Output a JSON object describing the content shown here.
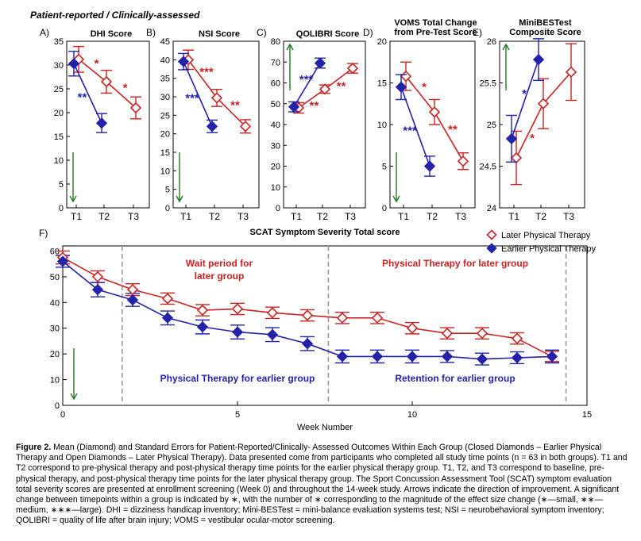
{
  "figure": {
    "header": "Patient-reported / Clinically-assessed",
    "colors": {
      "later": "#cc2222",
      "earlier": "#2222aa",
      "arrow": "#1e7a1e",
      "dashed": "#999999"
    }
  },
  "chart_data": [
    {
      "panel": "A)",
      "type": "line",
      "title": "DHI Score",
      "categories": [
        "T1",
        "T2",
        "T3"
      ],
      "ylim": [
        0,
        35
      ],
      "yticks": [
        0,
        5,
        10,
        15,
        20,
        25,
        30,
        35
      ],
      "series": [
        {
          "key": "later",
          "values": [
            31.2,
            26.5,
            21.0
          ],
          "err": [
            2.7,
            2.4,
            2.3
          ]
        },
        {
          "key": "earlier",
          "values": [
            30.3,
            17.8,
            null
          ],
          "err": [
            2.6,
            2.0,
            null
          ]
        }
      ],
      "significance": [
        {
          "series": "later",
          "between": [
            1,
            2
          ],
          "label": "*"
        },
        {
          "series": "later",
          "between": [
            2,
            3
          ],
          "label": "*"
        },
        {
          "series": "earlier",
          "between": [
            1,
            2
          ],
          "label": "**"
        }
      ],
      "improvement": "down"
    },
    {
      "panel": "B)",
      "type": "line",
      "title": "NSI Score",
      "categories": [
        "T1",
        "T2",
        "T3"
      ],
      "ylim": [
        0,
        45
      ],
      "yticks": [
        0,
        5,
        10,
        15,
        20,
        25,
        30,
        35,
        40,
        45
      ],
      "series": [
        {
          "key": "later",
          "values": [
            40.0,
            29.7,
            22.0
          ],
          "err": [
            2.6,
            2.3,
            1.8
          ]
        },
        {
          "key": "earlier",
          "values": [
            39.5,
            22.0,
            null
          ],
          "err": [
            2.2,
            1.7,
            null
          ]
        }
      ],
      "significance": [
        {
          "series": "later",
          "between": [
            1,
            2
          ],
          "label": "***"
        },
        {
          "series": "later",
          "between": [
            2,
            3
          ],
          "label": "**"
        },
        {
          "series": "earlier",
          "between": [
            1,
            2
          ],
          "label": "***"
        }
      ],
      "improvement": "down"
    },
    {
      "panel": "C)",
      "type": "line",
      "title": "QOLIBRI Score",
      "categories": [
        "T1",
        "T2",
        "T3"
      ],
      "ylim": [
        0,
        80
      ],
      "yticks": [
        0,
        10,
        20,
        30,
        40,
        50,
        60,
        70,
        80
      ],
      "series": [
        {
          "key": "later",
          "values": [
            48.0,
            57.0,
            67.0
          ],
          "err": [
            2.5,
            2.0,
            2.3
          ]
        },
        {
          "key": "earlier",
          "values": [
            48.5,
            69.5,
            null
          ],
          "err": [
            2.4,
            2.4,
            null
          ]
        }
      ],
      "significance": [
        {
          "series": "later",
          "between": [
            1,
            2
          ],
          "label": "**"
        },
        {
          "series": "later",
          "between": [
            2,
            3
          ],
          "label": "**"
        },
        {
          "series": "earlier",
          "between": [
            1,
            2
          ],
          "label": "***"
        }
      ],
      "improvement": "up"
    },
    {
      "panel": "D)",
      "type": "line",
      "title": "VOMS Total Change\nfrom Pre-Test Score",
      "categories": [
        "T1",
        "T2",
        "T3"
      ],
      "ylim": [
        0,
        20
      ],
      "yticks": [
        0,
        5,
        10,
        15,
        20
      ],
      "series": [
        {
          "key": "later",
          "values": [
            15.8,
            11.5,
            5.6
          ],
          "err": [
            1.7,
            1.5,
            1.0
          ]
        },
        {
          "key": "earlier",
          "values": [
            14.5,
            5.0,
            null
          ],
          "err": [
            1.5,
            1.2,
            null
          ]
        }
      ],
      "significance": [
        {
          "series": "later",
          "between": [
            1,
            2
          ],
          "label": "*"
        },
        {
          "series": "later",
          "between": [
            2,
            3
          ],
          "label": "**"
        },
        {
          "series": "earlier",
          "between": [
            1,
            2
          ],
          "label": "***"
        }
      ],
      "improvement": "down"
    },
    {
      "panel": "E)",
      "type": "line",
      "title": "MiniBESTest\nComposite Score",
      "categories": [
        "T1",
        "T2",
        "T3"
      ],
      "ylim": [
        24,
        26
      ],
      "yticks": [
        24,
        24.5,
        25,
        25.5,
        26
      ],
      "ytick_labels": [
        "24",
        "24.5",
        "25",
        "25.5",
        "26"
      ],
      "series": [
        {
          "key": "later",
          "values": [
            24.6,
            25.25,
            25.63
          ],
          "err": [
            0.32,
            0.3,
            0.34
          ]
        },
        {
          "key": "earlier",
          "values": [
            24.83,
            25.78,
            null
          ],
          "err": [
            0.28,
            0.25,
            null
          ]
        }
      ],
      "significance": [
        {
          "series": "later",
          "between": [
            1,
            2
          ],
          "label": "*"
        },
        {
          "series": "earlier",
          "between": [
            1,
            2
          ],
          "label": "*"
        }
      ],
      "improvement": "up"
    },
    {
      "panel": "F)",
      "type": "line",
      "title": "SCAT Symptom Severity Total score",
      "xlabel": "Week Number",
      "xlim": [
        0,
        15
      ],
      "xticks": [
        0,
        5,
        10,
        15
      ],
      "ylim": [
        0,
        62
      ],
      "yticks": [
        0,
        10,
        20,
        30,
        40,
        50,
        60
      ],
      "x": [
        0,
        1,
        2,
        3,
        4,
        5,
        6,
        7,
        8,
        9,
        10,
        11,
        12,
        13,
        14
      ],
      "series": [
        {
          "key": "later",
          "name": "Later Physical Therapy",
          "values": [
            57.5,
            50.0,
            45.0,
            41.5,
            37.0,
            37.5,
            36.0,
            35.0,
            34.0,
            34.0,
            30.0,
            28.0,
            28.0,
            26.0,
            19.0
          ],
          "err": [
            2.5,
            2.3,
            2.3,
            2.2,
            2.2,
            2.2,
            2.2,
            2.2,
            2.2,
            2.2,
            2.2,
            2.2,
            2.2,
            2.2,
            2.0
          ]
        },
        {
          "key": "earlier",
          "name": "Earlier Physical Therapy",
          "values": [
            56.0,
            45.0,
            41.0,
            34.0,
            30.5,
            28.5,
            27.5,
            24.0,
            19.0,
            19.0,
            19.0,
            19.0,
            18.0,
            18.5,
            19.0
          ],
          "err": [
            2.3,
            2.8,
            2.5,
            2.7,
            2.7,
            2.7,
            2.7,
            2.7,
            2.5,
            2.5,
            2.5,
            2.3,
            2.3,
            2.3,
            2.5
          ]
        }
      ],
      "dividers_x": [
        1.7,
        7.6,
        14.4
      ],
      "annotations": [
        {
          "key": "later",
          "lines": [
            "Wait period for",
            "later group"
          ]
        },
        {
          "key": "later",
          "lines": [
            "Physical Therapy for later group"
          ]
        },
        {
          "key": "earlier",
          "lines": [
            "Physical Therapy for earlier group"
          ]
        },
        {
          "key": "earlier",
          "lines": [
            "Retention for earlier group"
          ]
        }
      ],
      "improvement": "down",
      "legend": "top-right"
    }
  ],
  "caption": {
    "label": "Figure 2.",
    "text": "Mean (Diamond) and Standard Errors for Patient-Reported/Clinically- Assessed Outcomes Within Each Group (Closed Diamonds – Earlier Physical Therapy and Open Diamonds – Later Physical Therapy). Data presented come from participants who completed all study time points (n = 63 in both groups). T1 and T2 correspond to pre-physical therapy and post-physical therapy time points for the earlier physical therapy group. T1, T2, and T3 correspond to baseline, pre-physical therapy, and post-physical therapy time points for the later physical therapy group. The Sport Concussion Assessment Tool (SCAT) symptom evaluation total severity scores are presented at enrollment screening (Week 0) and throughout the 14-week study. Arrows indicate the direction of improvement. A significant change between timepoints within a group is indicated by ∗, with the number of ∗ corresponding to the magnitude of the effect size change (∗—small, ∗∗—medium, ∗∗∗—large). DHI = dizziness handicap inventory; Mini-BESTest = mini-balance evaluation systems test; NSI = neurobehavioral symptom inventory; QOLIBRI = quality of life after brain injury; VOMS = vestibular ocular-motor screening."
  }
}
